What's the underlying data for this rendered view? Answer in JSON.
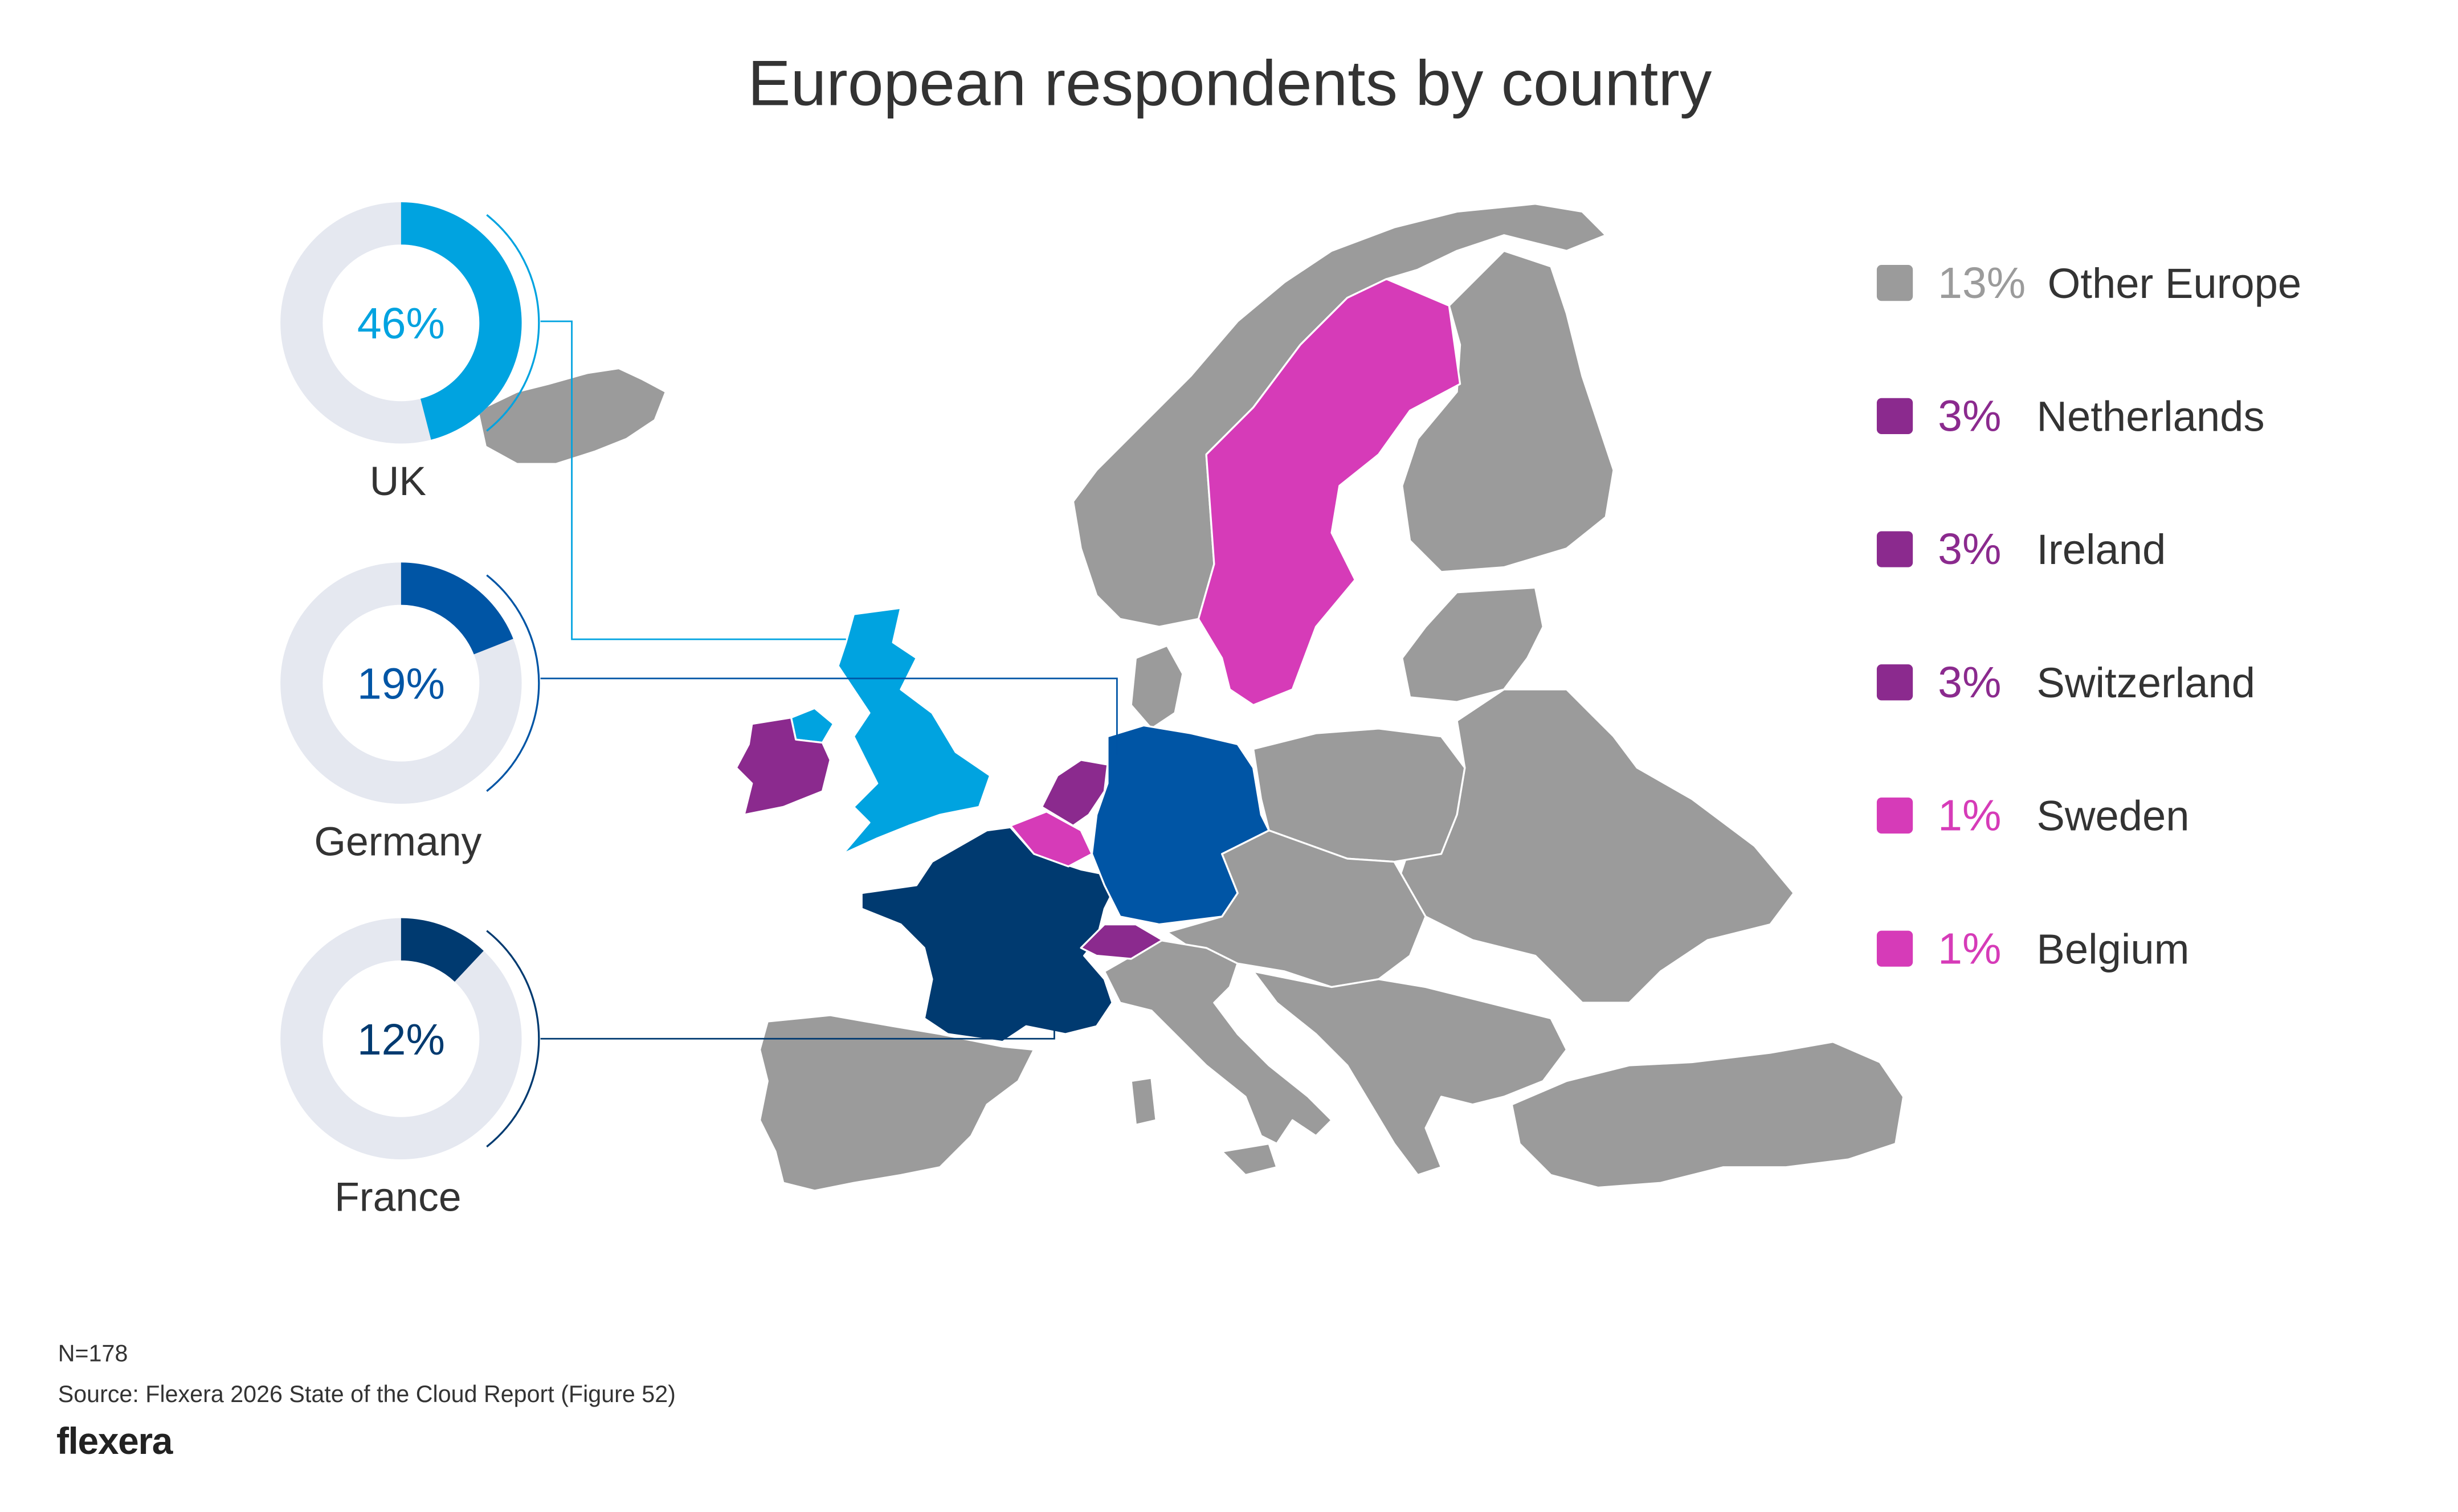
{
  "chart_data": {
    "type": "pie",
    "title": "European respondents by country",
    "featured": [
      {
        "country": "UK",
        "value": 46,
        "label": "46%",
        "color": "#00a3e0"
      },
      {
        "country": "Germany",
        "value": 19,
        "label": "19%",
        "color": "#0055a5"
      },
      {
        "country": "France",
        "value": 12,
        "label": "12%",
        "color": "#003a70"
      }
    ],
    "track_color": "#e5e8f0",
    "legend": [
      {
        "label": "Other Europe",
        "value": 13,
        "pct": "13%",
        "color": "#9b9b9b"
      },
      {
        "label": "Netherlands",
        "value": 3,
        "pct": "3%",
        "color": "#8b2a8e"
      },
      {
        "label": "Ireland",
        "value": 3,
        "pct": "3%",
        "color": "#8b2a8e"
      },
      {
        "label": "Switzerland",
        "value": 3,
        "pct": "3%",
        "color": "#8b2a8e"
      },
      {
        "label": "Sweden",
        "value": 1,
        "pct": "1%",
        "color": "#d63bb8"
      },
      {
        "label": "Belgium",
        "value": 1,
        "pct": "1%",
        "color": "#d63bb8"
      }
    ],
    "legend_placement": "right"
  },
  "footer": {
    "n": "N=178",
    "source": "Source: Flexera 2026 State of the Cloud Report (Figure 52)",
    "logo": "flexera"
  }
}
